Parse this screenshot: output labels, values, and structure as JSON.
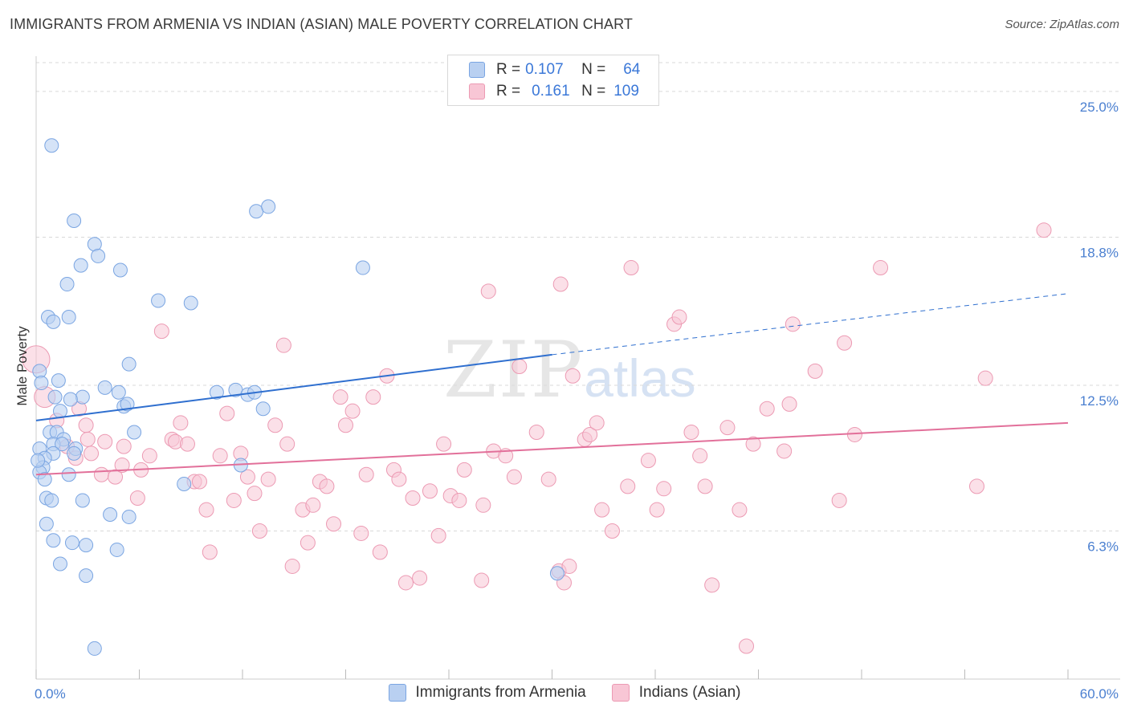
{
  "title": "IMMIGRANTS FROM ARMENIA VS INDIAN (ASIAN) MALE POVERTY CORRELATION CHART",
  "source": "Source: ZipAtlas.com",
  "watermark": {
    "zip": "ZIP",
    "atlas": "atlas"
  },
  "legend": {
    "series1": {
      "r_label": "R =",
      "r_value": "0.107",
      "n_label": "N =",
      "n_value": "64"
    },
    "series2": {
      "r_label": "R =",
      "r_value": "0.161",
      "n_label": "N =",
      "n_value": "109"
    }
  },
  "bottom_legend": {
    "series1": "Immigrants from Armenia",
    "series2": "Indians (Asian)"
  },
  "colors": {
    "series1_fill": "#b9d0f1",
    "series1_stroke": "#7aa5e2",
    "series1_line": "#2f6fcf",
    "series2_fill": "#f8c6d5",
    "series2_stroke": "#ec9ab3",
    "series2_line": "#e2709a",
    "grid": "#d9d9d9",
    "tick_label": "#4a7fd0"
  },
  "chart_data": {
    "type": "scatter",
    "title": "IMMIGRANTS FROM ARMENIA VS INDIAN (ASIAN) MALE POVERTY CORRELATION CHART",
    "xlabel": "",
    "ylabel": "Male Poverty",
    "xlim": [
      0,
      60
    ],
    "ylim": [
      0,
      26.5
    ],
    "x_tick_labels": [
      "0.0%",
      "60.0%"
    ],
    "y_ticks": [
      6.3,
      12.5,
      18.8,
      25.0
    ],
    "y_tick_labels": [
      "6.3%",
      "12.5%",
      "18.8%",
      "25.0%"
    ],
    "series": [
      {
        "name": "Immigrants from Armenia",
        "trend": {
          "x": [
            0,
            30
          ],
          "y": [
            11.0,
            13.8
          ],
          "dashed_to": [
            60,
            16.4
          ]
        },
        "points": [
          [
            0.9,
            22.7
          ],
          [
            2.2,
            19.5
          ],
          [
            3.4,
            18.5
          ],
          [
            3.6,
            18.0
          ],
          [
            2.6,
            17.6
          ],
          [
            4.9,
            17.4
          ],
          [
            1.8,
            16.8
          ],
          [
            7.1,
            16.1
          ],
          [
            9.0,
            16.0
          ],
          [
            0.7,
            15.4
          ],
          [
            1.9,
            15.4
          ],
          [
            1.0,
            15.2
          ],
          [
            5.4,
            13.4
          ],
          [
            0.2,
            13.1
          ],
          [
            0.3,
            12.6
          ],
          [
            1.3,
            12.7
          ],
          [
            4.0,
            12.4
          ],
          [
            4.8,
            12.2
          ],
          [
            2.7,
            12.0
          ],
          [
            1.1,
            12.0
          ],
          [
            2.0,
            11.9
          ],
          [
            5.1,
            11.6
          ],
          [
            5.3,
            11.7
          ],
          [
            1.4,
            11.4
          ],
          [
            0.8,
            10.5
          ],
          [
            1.2,
            10.5
          ],
          [
            5.7,
            10.5
          ],
          [
            1.6,
            10.2
          ],
          [
            1.0,
            10.0
          ],
          [
            1.5,
            10.0
          ],
          [
            0.2,
            9.8
          ],
          [
            2.3,
            9.8
          ],
          [
            1.0,
            9.6
          ],
          [
            0.5,
            9.4
          ],
          [
            2.2,
            9.6
          ],
          [
            0.4,
            9.0
          ],
          [
            0.2,
            8.8
          ],
          [
            1.9,
            8.7
          ],
          [
            0.5,
            8.5
          ],
          [
            0.6,
            7.7
          ],
          [
            0.9,
            7.6
          ],
          [
            2.7,
            7.6
          ],
          [
            4.3,
            7.0
          ],
          [
            5.4,
            6.9
          ],
          [
            0.6,
            6.6
          ],
          [
            1.0,
            5.9
          ],
          [
            2.1,
            5.8
          ],
          [
            2.9,
            5.7
          ],
          [
            4.7,
            5.5
          ],
          [
            1.4,
            4.9
          ],
          [
            2.9,
            4.4
          ],
          [
            3.4,
            1.3
          ],
          [
            8.6,
            8.3
          ],
          [
            10.5,
            12.2
          ],
          [
            11.6,
            12.3
          ],
          [
            11.9,
            9.1
          ],
          [
            12.3,
            12.1
          ],
          [
            12.7,
            12.2
          ],
          [
            13.2,
            11.5
          ],
          [
            12.8,
            19.9
          ],
          [
            13.5,
            20.1
          ],
          [
            19.0,
            17.5
          ],
          [
            30.3,
            4.5
          ],
          [
            0.1,
            9.3
          ]
        ]
      },
      {
        "name": "Indians (Asian)",
        "trend": {
          "x": [
            0,
            60
          ],
          "y": [
            8.7,
            10.9
          ]
        },
        "points": [
          [
            0.0,
            13.6
          ],
          [
            0.5,
            12.0
          ],
          [
            1.2,
            11.0
          ],
          [
            2.5,
            11.5
          ],
          [
            2.9,
            10.8
          ],
          [
            3.2,
            9.6
          ],
          [
            2.3,
            9.4
          ],
          [
            4.0,
            10.1
          ],
          [
            3.8,
            8.7
          ],
          [
            4.6,
            8.6
          ],
          [
            5.0,
            9.1
          ],
          [
            5.9,
            7.7
          ],
          [
            6.1,
            8.9
          ],
          [
            6.6,
            9.5
          ],
          [
            7.3,
            14.8
          ],
          [
            7.9,
            10.2
          ],
          [
            8.1,
            10.1
          ],
          [
            8.4,
            10.9
          ],
          [
            8.8,
            10.0
          ],
          [
            9.2,
            8.4
          ],
          [
            9.5,
            8.4
          ],
          [
            9.9,
            7.2
          ],
          [
            10.1,
            5.4
          ],
          [
            10.7,
            9.5
          ],
          [
            11.1,
            11.3
          ],
          [
            11.5,
            7.6
          ],
          [
            11.9,
            9.6
          ],
          [
            12.3,
            8.6
          ],
          [
            12.7,
            7.9
          ],
          [
            13.0,
            6.3
          ],
          [
            13.5,
            8.5
          ],
          [
            13.9,
            10.8
          ],
          [
            14.4,
            14.2
          ],
          [
            14.6,
            10.0
          ],
          [
            14.9,
            4.8
          ],
          [
            15.5,
            7.2
          ],
          [
            15.8,
            5.8
          ],
          [
            16.1,
            7.4
          ],
          [
            16.5,
            8.4
          ],
          [
            16.9,
            8.2
          ],
          [
            17.3,
            6.6
          ],
          [
            17.7,
            12.0
          ],
          [
            18.0,
            10.8
          ],
          [
            18.4,
            11.4
          ],
          [
            18.9,
            6.2
          ],
          [
            19.2,
            8.7
          ],
          [
            19.6,
            12.0
          ],
          [
            20.0,
            5.4
          ],
          [
            20.4,
            12.9
          ],
          [
            20.8,
            8.9
          ],
          [
            21.1,
            8.5
          ],
          [
            21.5,
            4.1
          ],
          [
            21.9,
            7.7
          ],
          [
            22.3,
            4.3
          ],
          [
            22.9,
            8.0
          ],
          [
            23.4,
            6.1
          ],
          [
            23.7,
            10.0
          ],
          [
            24.1,
            7.8
          ],
          [
            24.6,
            7.6
          ],
          [
            24.9,
            8.9
          ],
          [
            25.9,
            4.2
          ],
          [
            26.0,
            7.4
          ],
          [
            26.3,
            16.5
          ],
          [
            26.6,
            9.7
          ],
          [
            27.3,
            9.5
          ],
          [
            27.8,
            8.6
          ],
          [
            28.1,
            13.3
          ],
          [
            29.1,
            10.5
          ],
          [
            29.8,
            8.5
          ],
          [
            30.4,
            4.6
          ],
          [
            30.7,
            4.1
          ],
          [
            31.0,
            4.8
          ],
          [
            30.5,
            16.8
          ],
          [
            31.2,
            12.9
          ],
          [
            31.9,
            10.2
          ],
          [
            32.2,
            10.4
          ],
          [
            32.6,
            10.9
          ],
          [
            32.9,
            7.2
          ],
          [
            33.5,
            6.3
          ],
          [
            34.4,
            8.2
          ],
          [
            34.6,
            17.5
          ],
          [
            35.6,
            9.3
          ],
          [
            36.1,
            7.2
          ],
          [
            36.5,
            8.1
          ],
          [
            37.1,
            15.1
          ],
          [
            37.4,
            15.4
          ],
          [
            38.1,
            10.5
          ],
          [
            38.6,
            9.5
          ],
          [
            38.9,
            8.2
          ],
          [
            39.3,
            4.0
          ],
          [
            40.2,
            10.7
          ],
          [
            40.9,
            7.2
          ],
          [
            41.7,
            10.0
          ],
          [
            41.3,
            1.4
          ],
          [
            42.5,
            11.5
          ],
          [
            43.5,
            9.7
          ],
          [
            43.8,
            11.7
          ],
          [
            44.0,
            15.1
          ],
          [
            45.3,
            13.1
          ],
          [
            46.7,
            7.6
          ],
          [
            47.0,
            14.3
          ],
          [
            47.6,
            10.4
          ],
          [
            49.1,
            17.5
          ],
          [
            54.7,
            8.2
          ],
          [
            55.2,
            12.8
          ],
          [
            58.6,
            19.1
          ],
          [
            5.1,
            9.9
          ],
          [
            3.0,
            10.2
          ],
          [
            1.8,
            9.9
          ]
        ]
      }
    ]
  }
}
